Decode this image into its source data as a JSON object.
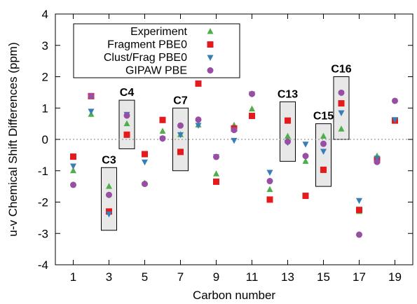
{
  "chart_data": {
    "type": "scatter",
    "xlabel": "Carbon number",
    "ylabel": "u-v Chemical Shift Differences (ppm)",
    "xlim": [
      0,
      20
    ],
    "ylim": [
      -4,
      4
    ],
    "xticks": [
      "1",
      "3",
      "5",
      "7",
      "9",
      "11",
      "13",
      "15",
      "17",
      "19"
    ],
    "xtick_values": [
      1,
      3,
      5,
      7,
      9,
      11,
      13,
      15,
      17,
      19
    ],
    "yticks": [
      "-4",
      "-3",
      "-2",
      "-1",
      "0",
      "1",
      "2",
      "3",
      "4"
    ],
    "ytick_values": [
      -4,
      -3,
      -2,
      -1,
      0,
      1,
      2,
      3,
      4
    ],
    "reference_line": 0,
    "legend_position": "top-left",
    "series": [
      {
        "name": "Experiment",
        "marker": "triangle-up",
        "color": "#4daf4a",
        "x": [
          1,
          2,
          3,
          4,
          5,
          6,
          7,
          8,
          9,
          10,
          11,
          12,
          13,
          14,
          15,
          16,
          17,
          18,
          19
        ],
        "values": [
          -1.0,
          0.8,
          -1.5,
          0.5,
          -1.4,
          0.26,
          0.15,
          0.46,
          -1.1,
          0.45,
          0.97,
          -1.6,
          0.1,
          -0.7,
          0.1,
          0.33,
          -2.3,
          -0.53,
          0.6
        ]
      },
      {
        "name": "Fragment PBE0",
        "marker": "square",
        "color": "#e41a1c",
        "x": [
          1,
          2,
          3,
          4,
          5,
          6,
          7,
          8,
          9,
          10,
          11,
          12,
          13,
          14,
          15,
          16,
          17,
          18,
          19
        ],
        "values": [
          -0.55,
          1.38,
          -2.3,
          0.15,
          -0.47,
          0.62,
          -0.4,
          1.78,
          -1.35,
          0.35,
          0.75,
          -1.92,
          0.6,
          -1.8,
          -0.97,
          1.15,
          -2.25,
          -0.65,
          0.6
        ]
      },
      {
        "name": "Clust/Frag PBE0",
        "marker": "triangle-down",
        "color": "#377eb8",
        "x": [
          1,
          2,
          3,
          4,
          5,
          6,
          7,
          8,
          9,
          10,
          11,
          12,
          13,
          14,
          15,
          16,
          17,
          18,
          19
        ],
        "values": [
          -0.85,
          0.9,
          -2.38,
          0.8,
          -0.72,
          0.02,
          0.15,
          0.45,
          -0.55,
          -0.03,
          1.45,
          -1.05,
          -0.1,
          -0.15,
          -0.38,
          0.85,
          -1.95,
          -0.6,
          0.63
        ]
      },
      {
        "name": "GIPAW PBE",
        "marker": "circle",
        "color": "#984ea3",
        "x": [
          1,
          2,
          3,
          4,
          5,
          6,
          7,
          8,
          9,
          10,
          11,
          12,
          13,
          14,
          15,
          16,
          17,
          18,
          19
        ],
        "values": [
          -1.45,
          1.38,
          -1.77,
          0.76,
          -1.42,
          0.03,
          0.44,
          0.63,
          -0.56,
          0.3,
          1.45,
          -1.33,
          -0.07,
          -0.53,
          -0.14,
          1.49,
          -3.04,
          -0.72,
          1.23
        ]
      }
    ],
    "annotations": [
      {
        "label": "C3",
        "x": 3,
        "ymin": -2.9,
        "ymax": -0.9
      },
      {
        "label": "C4",
        "x": 4,
        "ymin": -0.3,
        "ymax": 1.25
      },
      {
        "label": "C7",
        "x": 7,
        "ymin": -1.0,
        "ymax": 1.0
      },
      {
        "label": "C13",
        "x": 13,
        "ymin": -0.7,
        "ymax": 1.2
      },
      {
        "label": "C15",
        "x": 15,
        "ymin": -1.5,
        "ymax": 0.5
      },
      {
        "label": "C16",
        "x": 16,
        "ymin": 0.0,
        "ymax": 2.0
      }
    ]
  }
}
